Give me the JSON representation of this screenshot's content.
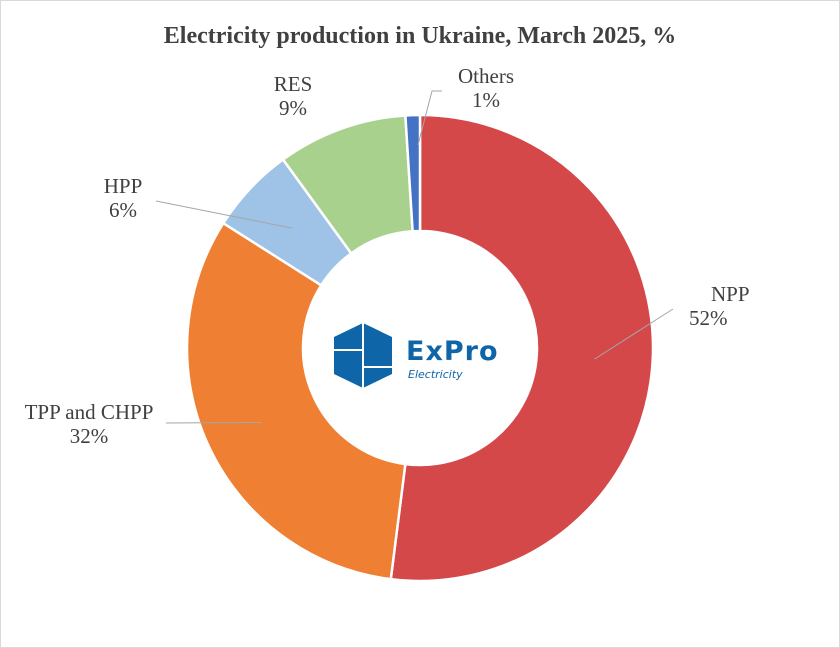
{
  "chart_data": {
    "type": "pie",
    "variant": "donut",
    "title": "Electricity production in Ukraine, March 2025, %",
    "slices": [
      {
        "label": "NPP",
        "value": 52,
        "value_label": "52%",
        "color": "#d4484a"
      },
      {
        "label": "TPP and CHPP",
        "value": 32,
        "value_label": "32%",
        "color": "#ee7f33"
      },
      {
        "label": "HPP",
        "value": 6,
        "value_label": "6%",
        "color": "#9ec3e6"
      },
      {
        "label": "RES",
        "value": 9,
        "value_label": "9%",
        "color": "#a9d18e"
      },
      {
        "label": "Others",
        "value": 1,
        "value_label": "1%",
        "color": "#4472c4"
      }
    ],
    "start": "top",
    "direction": "clockwise",
    "legend": "none"
  },
  "logo": {
    "name": "ExPro",
    "sub": "Electricity",
    "color": "#0e65a8"
  }
}
